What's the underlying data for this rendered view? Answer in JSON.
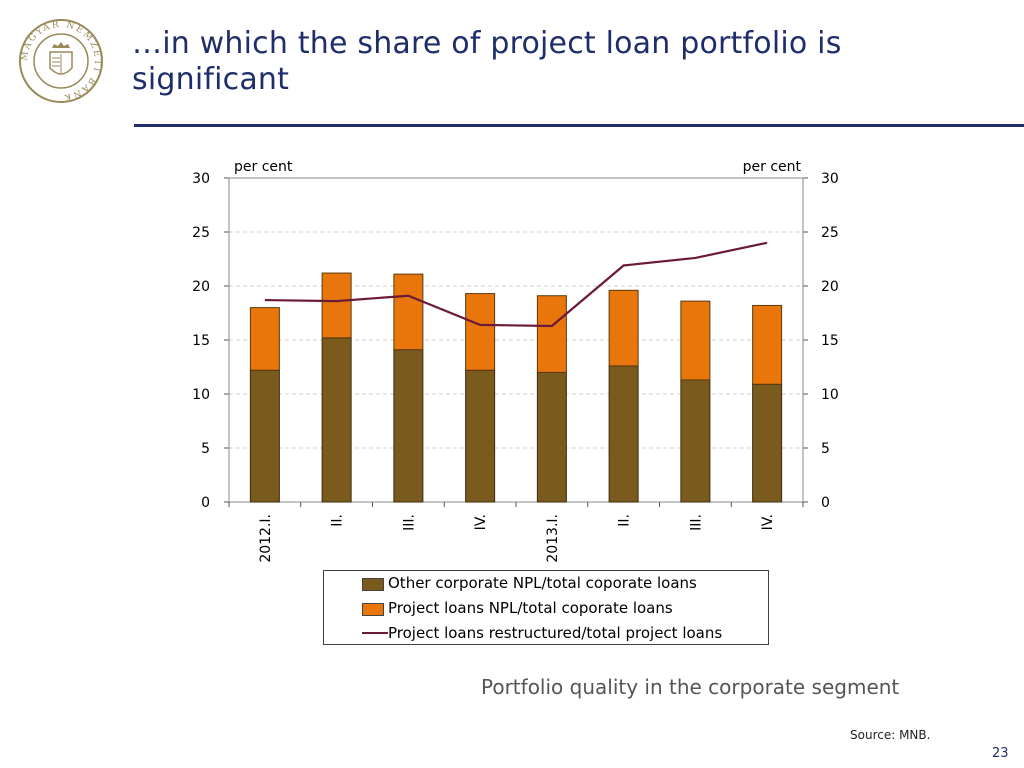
{
  "slide": {
    "title": "…in which the share of project loan portfolio is significant",
    "caption": "Portfolio quality  in the corporate segment",
    "source": "Source: MNB.",
    "page_number": "23",
    "logo_text": "MAGYAR NEMZETI BANK"
  },
  "colors": {
    "title": "#1f2d6b",
    "other_npl": "#7b5a1e",
    "project_npl": "#e8760a",
    "restructured_line": "#6b1a3a"
  },
  "chart_data": {
    "type": "bar",
    "stacked": true,
    "categories": [
      "2012.I.",
      "II.",
      "III.",
      "IV.",
      "2013.I.",
      "II.",
      "III.",
      "IV."
    ],
    "series": [
      {
        "name": "Other corporate NPL/total coporate loans",
        "type": "bar",
        "values": [
          12.2,
          15.2,
          14.1,
          12.2,
          12.0,
          12.6,
          11.3,
          10.9
        ]
      },
      {
        "name": "Project loans NPL/total coporate loans",
        "type": "bar",
        "values": [
          5.8,
          6.0,
          7.0,
          7.1,
          7.1,
          7.0,
          7.3,
          7.3
        ]
      },
      {
        "name": "Project loans restructured/total  project loans",
        "type": "line",
        "values": [
          18.7,
          18.6,
          19.1,
          16.4,
          16.3,
          21.9,
          22.6,
          24.0
        ]
      }
    ],
    "ylabel_left": "per cent",
    "ylabel_right": "per cent",
    "ylim": [
      0,
      30
    ],
    "yticks": [
      0,
      5,
      10,
      15,
      20,
      25,
      30
    ],
    "grid": true,
    "legend_position": "bottom"
  }
}
